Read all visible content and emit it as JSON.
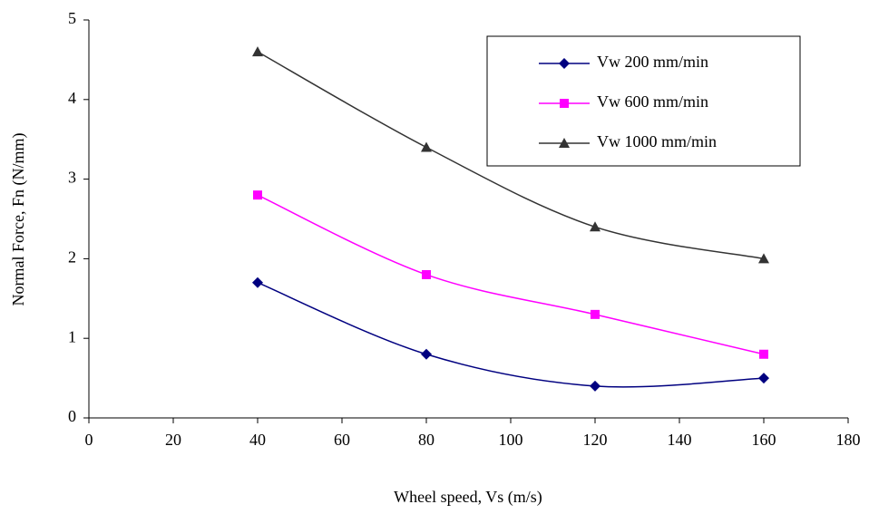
{
  "chart_data": {
    "type": "line",
    "x_label": "Wheel speed, Vs (m/s)",
    "y_label": "Normal Force, Fn (N/mm)",
    "x": [
      40,
      80,
      120,
      160
    ],
    "series": [
      {
        "name": "Vw 200 mm/min",
        "color": "#000080",
        "marker": "diamond",
        "values": [
          1.7,
          0.8,
          0.4,
          0.5
        ]
      },
      {
        "name": "Vw 600 mm/min",
        "color": "#ff00ff",
        "marker": "square",
        "values": [
          2.8,
          1.8,
          1.3,
          0.8
        ]
      },
      {
        "name": "Vw 1000 mm/min",
        "color": "#333333",
        "marker": "triangle",
        "values": [
          4.6,
          3.4,
          2.4,
          2.0
        ]
      }
    ],
    "xlim": [
      0,
      180
    ],
    "xticks": [
      0,
      20,
      40,
      60,
      80,
      100,
      120,
      140,
      160,
      180
    ],
    "ylim": [
      0,
      5
    ],
    "yticks": [
      0,
      1,
      2,
      3,
      4,
      5
    ],
    "smooth": true,
    "grid": false,
    "legend": "top-right"
  }
}
